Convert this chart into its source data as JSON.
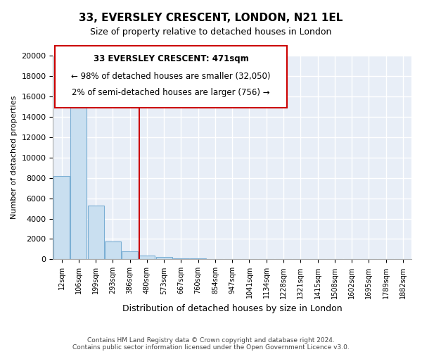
{
  "title": "33, EVERSLEY CRESCENT, LONDON, N21 1EL",
  "subtitle": "Size of property relative to detached houses in London",
  "xlabel": "Distribution of detached houses by size in London",
  "ylabel": "Number of detached properties",
  "bar_color": "#c9dff0",
  "bar_edge_color": "#7bafd4",
  "bin_labels": [
    "12sqm",
    "106sqm",
    "199sqm",
    "293sqm",
    "386sqm",
    "480sqm",
    "573sqm",
    "667sqm",
    "760sqm",
    "854sqm",
    "947sqm",
    "1041sqm",
    "1134sqm",
    "1228sqm",
    "1321sqm",
    "1415sqm",
    "1508sqm",
    "1602sqm",
    "1695sqm",
    "1789sqm",
    "1882sqm"
  ],
  "bar_heights": [
    8200,
    16500,
    5300,
    1750,
    800,
    350,
    230,
    130,
    110,
    0,
    0,
    0,
    0,
    0,
    0,
    0,
    0,
    0,
    0,
    0,
    0
  ],
  "ylim": [
    0,
    20000
  ],
  "yticks": [
    0,
    2000,
    4000,
    6000,
    8000,
    10000,
    12000,
    14000,
    16000,
    18000,
    20000
  ],
  "annotation_box_text_line1": "33 EVERSLEY CRESCENT: 471sqm",
  "annotation_box_text_line2": "← 98% of detached houses are smaller (32,050)",
  "annotation_box_text_line3": "2% of semi-detached houses are larger (756) →",
  "vline_color": "#cc0000",
  "vline_x": 4.55,
  "footer_line1": "Contains HM Land Registry data © Crown copyright and database right 2024.",
  "footer_line2": "Contains public sector information licensed under the Open Government Licence v3.0.",
  "background_color": "#e8eef7"
}
